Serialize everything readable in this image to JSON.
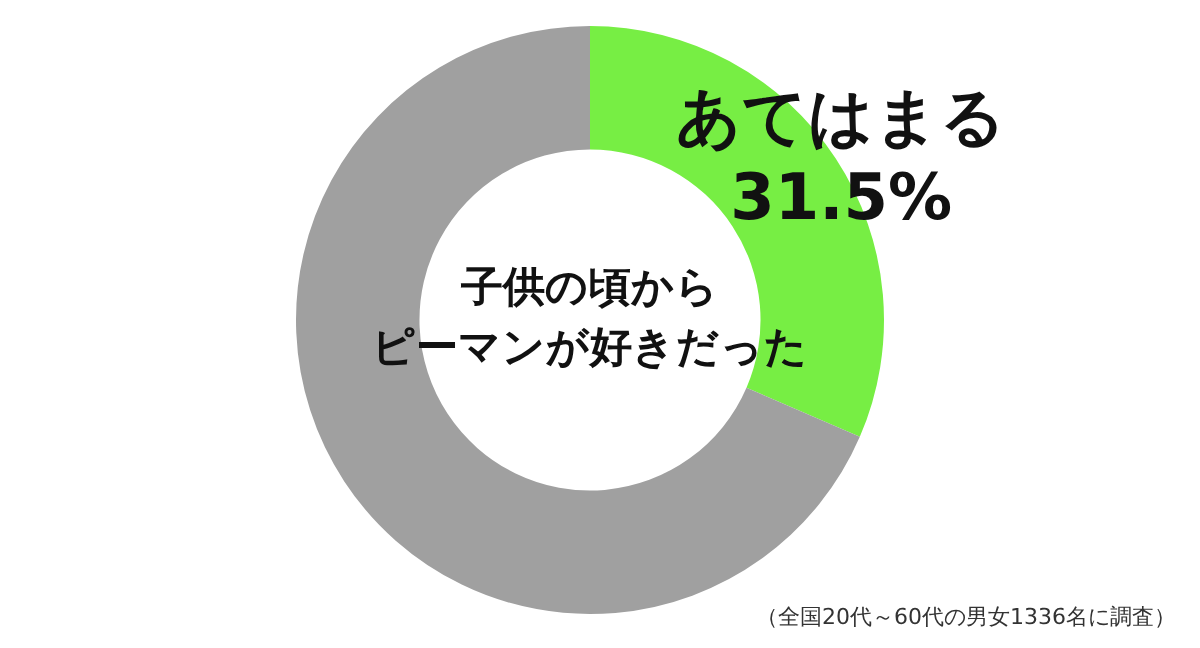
{
  "chart_data": {
    "type": "donut",
    "title": "子供の頃からピーマンが好きだった",
    "categories": [
      "あてはまる",
      null
    ],
    "values": [
      31.5,
      68.5
    ],
    "value_labels": [
      "31.5%",
      null
    ],
    "colors": [
      "#77ee44",
      "#a0a0a0"
    ],
    "annotations": [
      "（全国20代～60代の男女1336名に調査）"
    ],
    "legend": false
  }
}
